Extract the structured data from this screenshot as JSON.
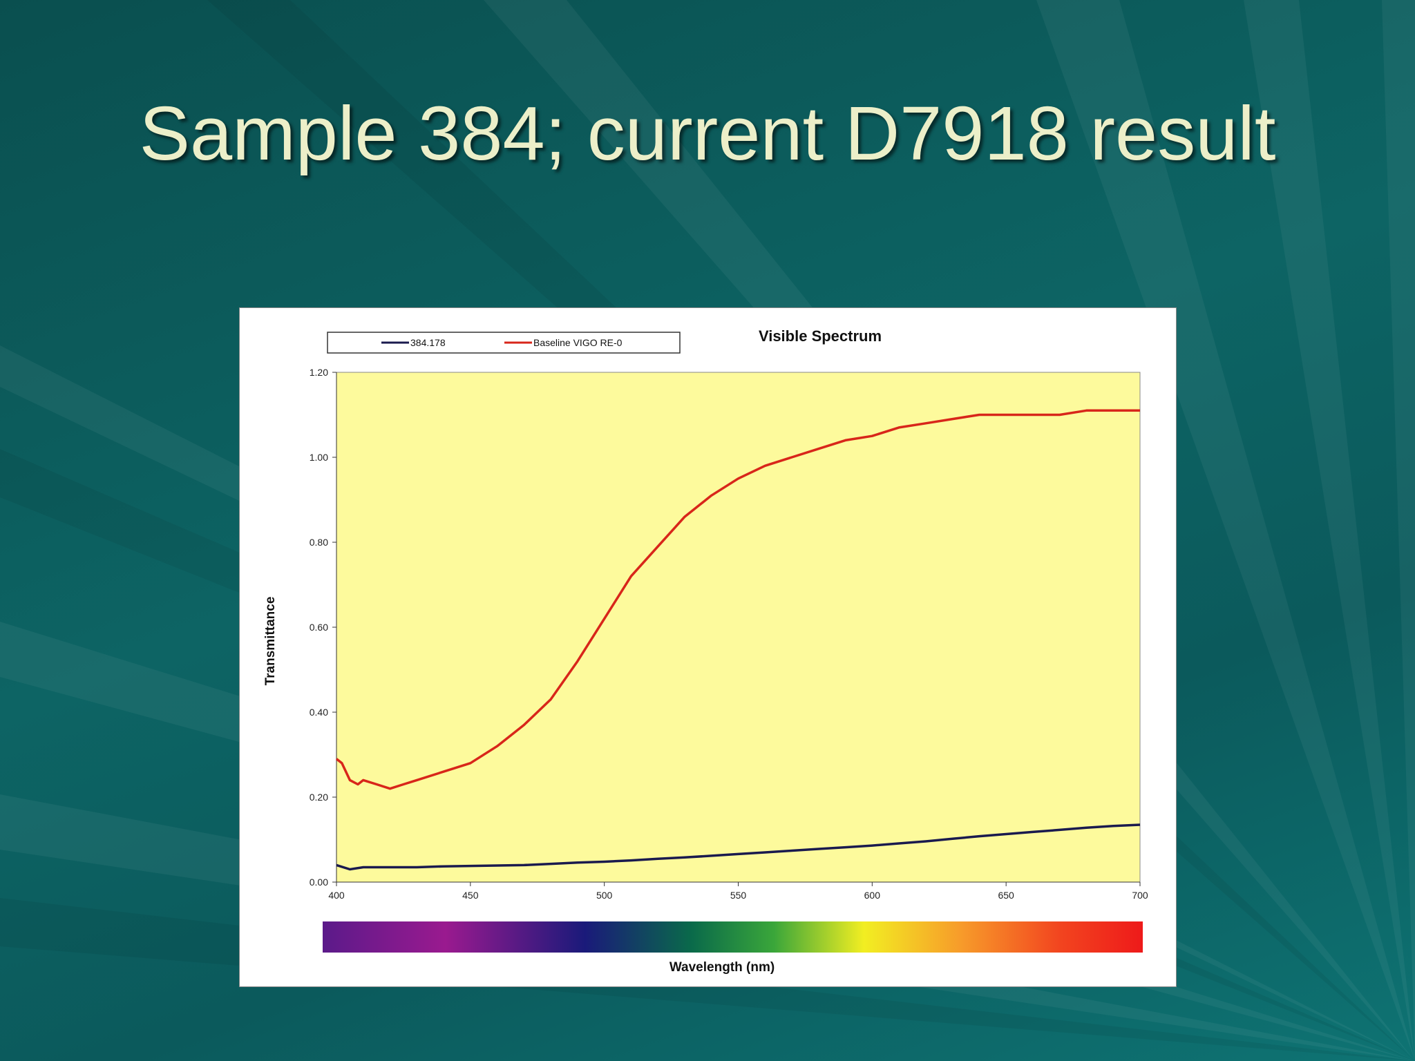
{
  "slide": {
    "title": "Sample 384; current D7918 result"
  },
  "colors": {
    "plot_background": "#fdfa9c",
    "series_sample": "#1a1a4e",
    "series_baseline": "#d8261a"
  },
  "chart_data": {
    "type": "line",
    "title": "Visible Spectrum",
    "xlabel": "Wavelength (nm)",
    "ylabel": "Transmittance",
    "xlim": [
      400,
      700
    ],
    "ylim": [
      0,
      1.2
    ],
    "x_ticks": [
      "400",
      "450",
      "500",
      "550",
      "600",
      "650",
      "700"
    ],
    "y_ticks": [
      "0.00",
      "0.20",
      "0.40",
      "0.60",
      "0.80",
      "1.00",
      "1.20"
    ],
    "grid": false,
    "legend": "top-left",
    "wavelength_color_bar": true,
    "series": [
      {
        "name": "384.178",
        "color": "#1a1a4e",
        "x": [
          400,
          405,
          410,
          420,
          430,
          440,
          450,
          460,
          470,
          480,
          490,
          500,
          510,
          520,
          530,
          540,
          550,
          560,
          570,
          580,
          590,
          600,
          610,
          620,
          630,
          640,
          650,
          660,
          670,
          680,
          690,
          700
        ],
        "y": [
          0.04,
          0.03,
          0.035,
          0.035,
          0.035,
          0.037,
          0.038,
          0.039,
          0.04,
          0.043,
          0.046,
          0.048,
          0.051,
          0.055,
          0.058,
          0.062,
          0.066,
          0.07,
          0.074,
          0.078,
          0.082,
          0.086,
          0.091,
          0.096,
          0.102,
          0.108,
          0.113,
          0.118,
          0.123,
          0.128,
          0.132,
          0.135
        ]
      },
      {
        "name": "Baseline VIGO RE-0",
        "color": "#d8261a",
        "x": [
          400,
          402,
          405,
          408,
          410,
          415,
          420,
          425,
          430,
          440,
          450,
          460,
          470,
          480,
          490,
          500,
          510,
          520,
          530,
          540,
          550,
          560,
          570,
          580,
          590,
          600,
          610,
          620,
          630,
          640,
          650,
          660,
          670,
          680,
          690,
          700
        ],
        "y": [
          0.29,
          0.28,
          0.24,
          0.23,
          0.24,
          0.23,
          0.22,
          0.23,
          0.24,
          0.26,
          0.28,
          0.32,
          0.37,
          0.43,
          0.52,
          0.62,
          0.72,
          0.79,
          0.86,
          0.91,
          0.95,
          0.98,
          1.0,
          1.02,
          1.04,
          1.05,
          1.07,
          1.08,
          1.09,
          1.1,
          1.1,
          1.1,
          1.1,
          1.11,
          1.11,
          1.11
        ]
      }
    ]
  }
}
